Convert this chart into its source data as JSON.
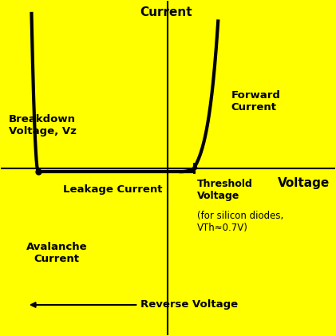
{
  "background_color": "#FFFF00",
  "curve_color": "#000000",
  "axis_color": "#000000",
  "curve_linewidth": 3.0,
  "axis_linewidth": 1.5,
  "title_text": "Current",
  "xlabel_text": "Voltage",
  "labels": {
    "forward_current": "Forward\nCurrent",
    "breakdown_voltage": "Breakdown\nVoltage, Vz",
    "leakage_current": "Leakage Current",
    "threshold_voltage": "Threshold\nVoltage",
    "silicon_note": "(for silicon diodes,\nVTh≈0.7V)",
    "avalanche_current": "Avalanche\nCurrent",
    "reverse_voltage": "Reverse Voltage"
  },
  "label_fontsize": 9.5,
  "axis_label_fontsize": 11,
  "figsize": [
    4.21,
    4.21
  ],
  "dpi": 100,
  "xlim": [
    -4.5,
    4.5
  ],
  "ylim": [
    -4.5,
    4.5
  ],
  "vz": -3.5,
  "vth": 0.7,
  "forward_exp_scale": 3.5,
  "avalanche_exp_scale": 3.5
}
